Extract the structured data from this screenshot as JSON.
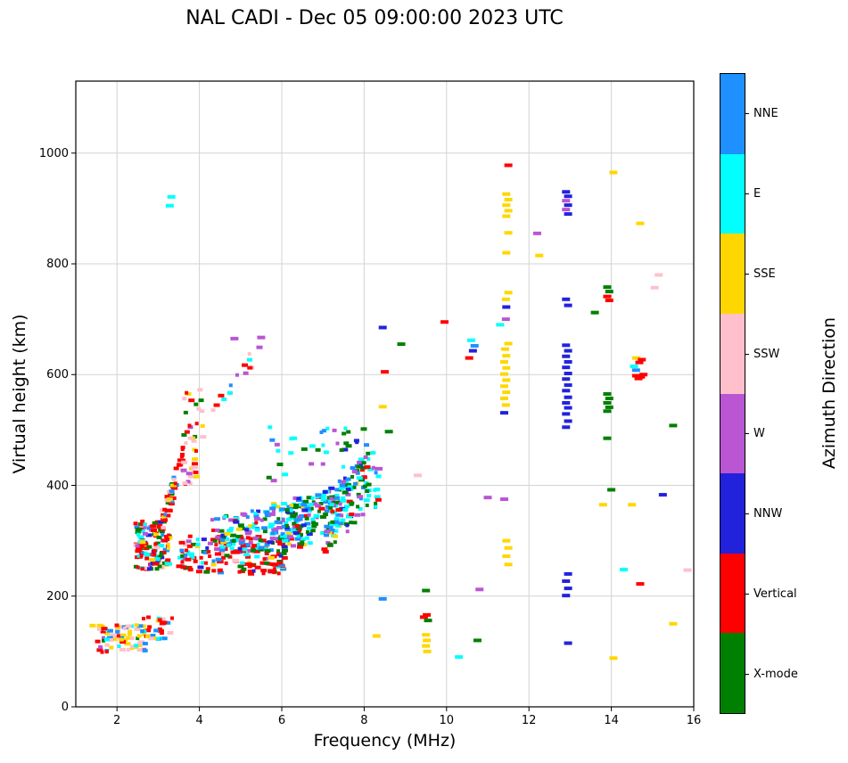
{
  "chart_data": {
    "type": "scatter",
    "title": "NAL CADI - Dec 05 09:00:00 2023 UTC",
    "xlabel": "Frequency (MHz)",
    "ylabel": "Virtual height (km)",
    "colorbar_label": "Azimuth Direction",
    "xlim": [
      1,
      16
    ],
    "ylim": [
      0,
      1130
    ],
    "xticks": [
      2,
      4,
      6,
      8,
      10,
      12,
      14,
      16
    ],
    "yticks": [
      0,
      200,
      400,
      600,
      800,
      1000
    ],
    "grid": true,
    "grid_color": "#d3d3d3",
    "legend_position": "right-colorbar",
    "categories": [
      {
        "code": "NNE",
        "label": "NNE",
        "color": "#1E90FF"
      },
      {
        "code": "E",
        "label": "E",
        "color": "#00FFFF"
      },
      {
        "code": "SSE",
        "label": "SSE",
        "color": "#FFD700"
      },
      {
        "code": "SSW",
        "label": "SSW",
        "color": "#FFC0CB"
      },
      {
        "code": "W",
        "label": "W",
        "color": "#BA55D3"
      },
      {
        "code": "NNW",
        "label": "NNW",
        "color": "#2222DD"
      },
      {
        "code": "V",
        "label": "Vertical",
        "color": "#FF0000"
      },
      {
        "code": "X",
        "label": "X-mode",
        "color": "#008000"
      }
    ],
    "points": [
      [
        3.28,
        905,
        "E"
      ],
      [
        3.32,
        921,
        "E"
      ],
      [
        4.85,
        665,
        "W"
      ],
      [
        5.5,
        667,
        "W"
      ],
      [
        8.3,
        128,
        "SSE"
      ],
      [
        8.45,
        195,
        "NNE"
      ],
      [
        8.35,
        430,
        "W"
      ],
      [
        8.45,
        542,
        "SSE"
      ],
      [
        8.5,
        605,
        "V"
      ],
      [
        8.45,
        685,
        "NNW"
      ],
      [
        8.9,
        655,
        "X"
      ],
      [
        8.6,
        497,
        "X"
      ],
      [
        9.3,
        418,
        "SSW"
      ],
      [
        9.45,
        162,
        "V"
      ],
      [
        9.52,
        166,
        "V"
      ],
      [
        9.55,
        156,
        "X"
      ],
      [
        9.5,
        210,
        "X"
      ],
      [
        9.5,
        130,
        "SSE"
      ],
      [
        9.52,
        120,
        "SSE"
      ],
      [
        9.5,
        110,
        "SSE"
      ],
      [
        9.53,
        100,
        "SSE"
      ],
      [
        9.95,
        695,
        "V"
      ],
      [
        10.3,
        90,
        "E"
      ],
      [
        10.55,
        630,
        "V"
      ],
      [
        10.6,
        662,
        "E"
      ],
      [
        10.68,
        652,
        "NNE"
      ],
      [
        10.64,
        643,
        "NNW"
      ],
      [
        10.75,
        120,
        "X"
      ],
      [
        10.8,
        212,
        "W"
      ],
      [
        11.0,
        378,
        "W"
      ],
      [
        11.3,
        690,
        "E"
      ],
      [
        11.4,
        375,
        "W"
      ],
      [
        11.4,
        531,
        "NNW"
      ],
      [
        11.44,
        545,
        "SSE"
      ],
      [
        11.4,
        557,
        "SSE"
      ],
      [
        11.45,
        568,
        "SSE"
      ],
      [
        11.4,
        579,
        "SSE"
      ],
      [
        11.45,
        590,
        "SSE"
      ],
      [
        11.4,
        601,
        "SSE"
      ],
      [
        11.45,
        612,
        "SSE"
      ],
      [
        11.4,
        623,
        "SSE"
      ],
      [
        11.45,
        634,
        "SSE"
      ],
      [
        11.42,
        646,
        "SSE"
      ],
      [
        11.5,
        656,
        "SSE"
      ],
      [
        11.44,
        700,
        "W"
      ],
      [
        11.45,
        722,
        "NNW"
      ],
      [
        11.44,
        736,
        "SSE"
      ],
      [
        11.5,
        748,
        "SSE"
      ],
      [
        11.45,
        820,
        "SSE"
      ],
      [
        11.5,
        856,
        "SSE"
      ],
      [
        11.45,
        886,
        "SSE"
      ],
      [
        11.5,
        896,
        "SSE"
      ],
      [
        11.45,
        906,
        "SSE"
      ],
      [
        11.5,
        916,
        "SSE"
      ],
      [
        11.45,
        926,
        "SSE"
      ],
      [
        11.5,
        978,
        "V"
      ],
      [
        11.45,
        300,
        "SSE"
      ],
      [
        11.5,
        287,
        "SSE"
      ],
      [
        11.45,
        272,
        "SSE"
      ],
      [
        11.5,
        257,
        "SSE"
      ],
      [
        12.2,
        855,
        "W"
      ],
      [
        12.25,
        815,
        "SSE"
      ],
      [
        12.9,
        505,
        "NNW"
      ],
      [
        12.95,
        516,
        "NNW"
      ],
      [
        12.9,
        529,
        "NNW"
      ],
      [
        12.95,
        540,
        "NNW"
      ],
      [
        12.9,
        549,
        "NNW"
      ],
      [
        12.95,
        559,
        "NNW"
      ],
      [
        12.9,
        571,
        "NNW"
      ],
      [
        12.95,
        581,
        "NNW"
      ],
      [
        12.9,
        592,
        "NNW"
      ],
      [
        12.95,
        602,
        "NNW"
      ],
      [
        12.9,
        613,
        "NNW"
      ],
      [
        12.95,
        623,
        "NNW"
      ],
      [
        12.9,
        633,
        "NNW"
      ],
      [
        12.95,
        643,
        "NNW"
      ],
      [
        12.9,
        653,
        "NNW"
      ],
      [
        12.95,
        725,
        "NNW"
      ],
      [
        12.9,
        736,
        "NNW"
      ],
      [
        12.95,
        890,
        "NNW"
      ],
      [
        12.9,
        898,
        "W"
      ],
      [
        12.95,
        906,
        "NNW"
      ],
      [
        12.9,
        914,
        "W"
      ],
      [
        12.95,
        922,
        "NNW"
      ],
      [
        12.9,
        930,
        "NNW"
      ],
      [
        12.95,
        240,
        "NNW"
      ],
      [
        12.9,
        227,
        "NNW"
      ],
      [
        12.95,
        214,
        "NNW"
      ],
      [
        12.9,
        201,
        "NNW"
      ],
      [
        12.95,
        115,
        "NNW"
      ],
      [
        13.6,
        712,
        "X"
      ],
      [
        13.9,
        758,
        "X"
      ],
      [
        13.95,
        750,
        "X"
      ],
      [
        13.9,
        741,
        "V"
      ],
      [
        13.95,
        734,
        "V"
      ],
      [
        13.9,
        565,
        "X"
      ],
      [
        13.95,
        557,
        "X"
      ],
      [
        13.9,
        549,
        "X"
      ],
      [
        13.95,
        541,
        "X"
      ],
      [
        13.9,
        534,
        "X"
      ],
      [
        13.9,
        485,
        "X"
      ],
      [
        14.0,
        392,
        "X"
      ],
      [
        13.8,
        365,
        "SSE"
      ],
      [
        14.05,
        965,
        "SSE"
      ],
      [
        14.05,
        88,
        "SSE"
      ],
      [
        14.3,
        248,
        "E"
      ],
      [
        14.55,
        615,
        "E"
      ],
      [
        14.6,
        608,
        "NNE"
      ],
      [
        14.6,
        630,
        "SSE"
      ],
      [
        14.6,
        598,
        "V"
      ],
      [
        14.66,
        593,
        "V"
      ],
      [
        14.72,
        596,
        "V"
      ],
      [
        14.78,
        600,
        "V"
      ],
      [
        14.68,
        622,
        "V"
      ],
      [
        14.74,
        627,
        "V"
      ],
      [
        14.7,
        222,
        "V"
      ],
      [
        14.5,
        365,
        "SSE"
      ],
      [
        14.7,
        873,
        "SSE"
      ],
      [
        15.05,
        757,
        "SSW"
      ],
      [
        15.15,
        780,
        "SSW"
      ],
      [
        15.25,
        383,
        "NNW"
      ],
      [
        15.5,
        508,
        "X"
      ],
      [
        15.85,
        247,
        "SSW"
      ],
      [
        15.5,
        150,
        "SSE"
      ]
    ],
    "clusters": [
      {
        "x": [
          1.4,
          2.7
        ],
        "y": [
          98,
          148
        ],
        "n": 75,
        "colors": {
          "SSE": 22,
          "SSW": 18,
          "E": 12,
          "V": 8,
          "NNE": 8,
          "W": 4,
          "X": 3
        }
      },
      {
        "x": [
          2.6,
          3.35
        ],
        "y": [
          122,
          162
        ],
        "n": 28,
        "colors": {
          "V": 8,
          "SSW": 6,
          "SSE": 6,
          "NNE": 4,
          "E": 4
        }
      },
      {
        "x": [
          2.45,
          3.3
        ],
        "y": [
          248,
          335
        ],
        "n": 130,
        "colors": {
          "V": 40,
          "X": 18,
          "E": 18,
          "NNE": 14,
          "NNW": 14,
          "SSE": 12,
          "SSW": 7,
          "W": 7
        }
      },
      {
        "x": [
          3.1,
          3.6
        ],
        "y": [
          330,
          445
        ],
        "trend": true,
        "jitter": 25,
        "n": 45,
        "colors": {
          "V": 24,
          "X": 6,
          "SSW": 5,
          "SSE": 5,
          "NNE": 5
        }
      },
      {
        "x": [
          3.6,
          4.1
        ],
        "y": [
          425,
          575
        ],
        "n": 24,
        "colors": {
          "V": 10,
          "SSW": 7,
          "SSE": 4,
          "X": 3,
          "W": 2
        }
      },
      {
        "x": [
          3.6,
          3.95
        ],
        "y": [
          400,
          448
        ],
        "n": 18,
        "colors": {
          "SSW": 8,
          "SSE": 5,
          "V": 3,
          "W": 2
        }
      },
      {
        "x": [
          3.5,
          6.1
        ],
        "y": [
          240,
          308
        ],
        "n": 170,
        "colors": {
          "V": 76,
          "X": 26,
          "E": 20,
          "NNE": 14,
          "SSE": 14,
          "NNW": 8,
          "W": 6,
          "SSW": 6
        }
      },
      {
        "x": [
          4.3,
          6.6
        ],
        "y": [
          300,
          345
        ],
        "trend": true,
        "jitter": 38,
        "n": 150,
        "colors": {
          "E": 36,
          "NNE": 30,
          "W": 24,
          "X": 22,
          "V": 14,
          "NNW": 12,
          "SSE": 12
        }
      },
      {
        "x": [
          6.0,
          7.7
        ],
        "y": [
          315,
          370
        ],
        "trend": true,
        "jitter": 42,
        "n": 140,
        "colors": {
          "E": 42,
          "X": 36,
          "NNE": 20,
          "NNW": 14,
          "W": 14,
          "SSE": 7,
          "V": 7
        }
      },
      {
        "x": [
          7.0,
          8.35
        ],
        "y": [
          330,
          420
        ],
        "trend": true,
        "jitter": 55,
        "n": 100,
        "colors": {
          "X": 30,
          "E": 25,
          "NNE": 15,
          "NNW": 10,
          "W": 10,
          "SSE": 5,
          "V": 5
        }
      },
      {
        "x": [
          5.6,
          8.1
        ],
        "y": [
          400,
          505
        ],
        "n": 40,
        "colors": {
          "E": 12,
          "X": 10,
          "W": 8,
          "NNE": 6,
          "NNW": 4
        }
      },
      {
        "x": [
          4.05,
          5.55
        ],
        "y": [
          520,
          650
        ],
        "trend": true,
        "jitter": 18,
        "n": 16,
        "colors": {
          "SSW": 5,
          "V": 4,
          "E": 3,
          "W": 2,
          "NNE": 2
        }
      }
    ]
  }
}
